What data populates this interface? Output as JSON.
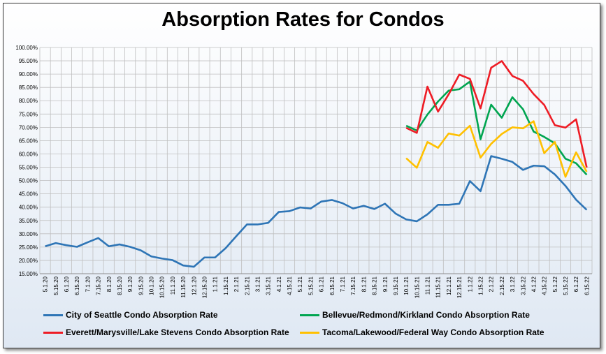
{
  "chart_data": {
    "type": "line",
    "title": "Absorption Rates for Condos",
    "xlabel": "",
    "ylabel": "",
    "ylim": [
      15,
      100
    ],
    "yticks": [
      "15.00%",
      "20.00%",
      "25.00%",
      "30.00%",
      "35.00%",
      "40.00%",
      "45.00%",
      "50.00%",
      "55.00%",
      "60.00%",
      "65.00%",
      "70.00%",
      "75.00%",
      "80.00%",
      "85.00%",
      "90.00%",
      "95.00%",
      "100.00%"
    ],
    "ytick_values": [
      15,
      20,
      25,
      30,
      35,
      40,
      45,
      50,
      55,
      60,
      65,
      70,
      75,
      80,
      85,
      90,
      95,
      100
    ],
    "grid": true,
    "legend": "bottom",
    "categories": [
      "5.1.20",
      "5.15.20",
      "6.1.20",
      "6.15.20",
      "7.1.20",
      "7.15.20",
      "8.1.20",
      "8.15.20",
      "9.1.20",
      "9.15.20",
      "10.1.20",
      "10.15.20",
      "11.1.20",
      "11.15.20",
      "12.1.20",
      "12.15.20",
      "1.1.21",
      "1.15.21",
      "2.1.21",
      "2.15.21",
      "3.1.21",
      "3.15.21",
      "4.1.21",
      "4.15.21",
      "5.1.21",
      "5.15.21",
      "6.1.21",
      "6.15.21",
      "7.1.21",
      "7.15.21",
      "8.1.21",
      "8.15.21",
      "9.1.21",
      "9.15.21",
      "10.1.21",
      "10.15.21",
      "11.1.21",
      "11.15.21",
      "12.1.21",
      "12.15.21",
      "1.1.22",
      "1.15.22",
      "2.1.22",
      "2.15.22",
      "3.1.22",
      "3.15.22",
      "4.1.22",
      "4.15.22",
      "5.1.22",
      "5.15.22",
      "6.1.22",
      "6.15.22"
    ],
    "series": [
      {
        "name": "City of Seattle Condo Absorption Rate",
        "color": "#2e75b6",
        "values": [
          25.3,
          26.5,
          25.7,
          25.1,
          26.8,
          28.4,
          25.3,
          26.0,
          25.1,
          23.8,
          21.5,
          20.7,
          20.1,
          18.1,
          17.6,
          21.1,
          21.1,
          24.6,
          29.1,
          33.5,
          33.5,
          34.1,
          38.2,
          38.5,
          39.9,
          39.5,
          42.1,
          42.7,
          41.5,
          39.5,
          40.5,
          39.3,
          41.3,
          37.6,
          35.4,
          34.7,
          37.3,
          40.9,
          40.9,
          41.3,
          49.8,
          46.0,
          59.2,
          58.2,
          57.0,
          54.0,
          55.6,
          55.4,
          52.3,
          48.0,
          42.8,
          39.0
        ]
      },
      {
        "name": "Bellevue/Redmond/Kirkland Condo Absorption Rate",
        "color": "#00a550",
        "values": [
          null,
          null,
          null,
          null,
          null,
          null,
          null,
          null,
          null,
          null,
          null,
          null,
          null,
          null,
          null,
          null,
          null,
          null,
          null,
          null,
          null,
          null,
          null,
          null,
          null,
          null,
          null,
          null,
          null,
          null,
          null,
          null,
          null,
          null,
          70.6,
          68.8,
          74.8,
          79.7,
          83.8,
          84.3,
          87.2,
          65.5,
          78.5,
          73.6,
          81.3,
          76.8,
          68.4,
          66.4,
          64.0,
          58.2,
          56.5,
          52.2
        ]
      },
      {
        "name": "Everett/Marysville/Lake Stevens Condo Absorption Rate",
        "color": "#ee1c25",
        "values": [
          null,
          null,
          null,
          null,
          null,
          null,
          null,
          null,
          null,
          null,
          null,
          null,
          null,
          null,
          null,
          null,
          null,
          null,
          null,
          null,
          null,
          null,
          null,
          null,
          null,
          null,
          null,
          null,
          null,
          null,
          null,
          null,
          null,
          null,
          69.8,
          67.9,
          85.3,
          75.9,
          82.4,
          89.8,
          88.2,
          77.1,
          92.4,
          94.9,
          89.3,
          87.5,
          82.5,
          78.4,
          70.8,
          69.9,
          73.0,
          54.9
        ]
      },
      {
        "name": "Tacoma/Lakewood/Federal Way Condo Absorption Rate",
        "color": "#ffc000",
        "values": [
          null,
          null,
          null,
          null,
          null,
          null,
          null,
          null,
          null,
          null,
          null,
          null,
          null,
          null,
          null,
          null,
          null,
          null,
          null,
          null,
          null,
          null,
          null,
          null,
          null,
          null,
          null,
          null,
          null,
          null,
          null,
          null,
          null,
          null,
          58.4,
          54.8,
          64.5,
          62.3,
          67.7,
          66.9,
          70.6,
          58.6,
          63.8,
          67.5,
          70.0,
          69.6,
          72.3,
          60.3,
          64.5,
          51.4,
          60.6,
          53.3
        ]
      }
    ]
  }
}
